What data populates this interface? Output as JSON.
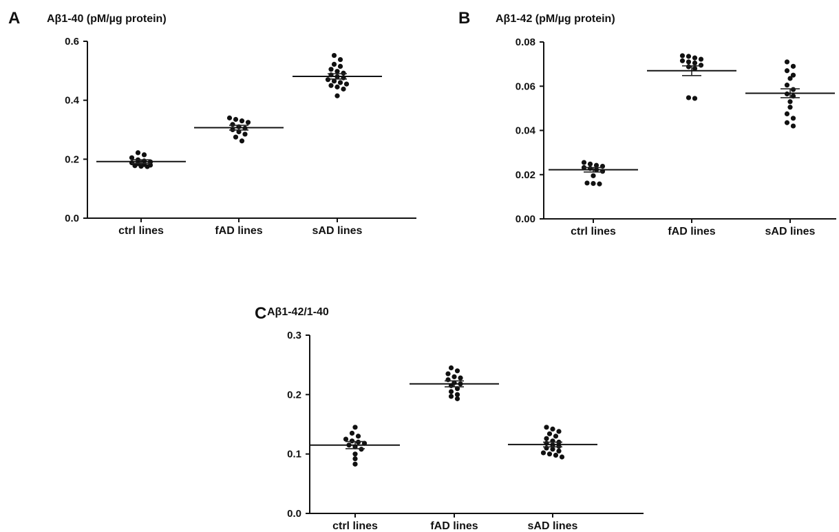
{
  "chart_data": [
    {
      "type": "scatter",
      "panel_letter": "A",
      "title": "Aβ1-40 (pM/µg protein)",
      "categories": [
        "ctrl lines",
        "fAD lines",
        "sAD lines"
      ],
      "ylim": [
        0,
        0.6
      ],
      "yticks": [
        0.0,
        0.2,
        0.4,
        0.6
      ],
      "ytick_labels": [
        "0.0",
        "0.2",
        "0.4",
        "0.6"
      ],
      "series": [
        {
          "values": [
            0.222,
            0.215,
            0.205,
            0.198,
            0.194,
            0.191,
            0.188,
            0.185,
            0.182,
            0.18,
            0.178,
            0.176,
            0.175
          ],
          "mean": 0.192,
          "sem_low": 0.186,
          "sem_high": 0.198
        },
        {
          "values": [
            0.34,
            0.335,
            0.33,
            0.325,
            0.318,
            0.31,
            0.305,
            0.3,
            0.293,
            0.285,
            0.275,
            0.262
          ],
          "mean": 0.307,
          "sem_low": 0.299,
          "sem_high": 0.315
        },
        {
          "values": [
            0.552,
            0.538,
            0.522,
            0.515,
            0.505,
            0.498,
            0.492,
            0.486,
            0.48,
            0.476,
            0.47,
            0.465,
            0.46,
            0.455,
            0.45,
            0.445,
            0.438,
            0.415
          ],
          "mean": 0.481,
          "sem_low": 0.472,
          "sem_high": 0.49
        }
      ]
    },
    {
      "type": "scatter",
      "panel_letter": "B",
      "title": "Aβ1-42 (pM/µg protein)",
      "categories": [
        "ctrl lines",
        "fAD lines",
        "sAD lines"
      ],
      "ylim": [
        0,
        0.08
      ],
      "yticks": [
        0.0,
        0.02,
        0.04,
        0.06,
        0.08
      ],
      "ytick_labels": [
        "0.00",
        "0.02",
        "0.04",
        "0.06",
        "0.08"
      ],
      "series": [
        {
          "values": [
            0.0255,
            0.0248,
            0.0242,
            0.0238,
            0.0232,
            0.0228,
            0.0222,
            0.0215,
            0.0195,
            0.0162,
            0.016,
            0.0158
          ],
          "mean": 0.0222,
          "sem_low": 0.0212,
          "sem_high": 0.0232
        },
        {
          "values": [
            0.0738,
            0.0735,
            0.0728,
            0.0722,
            0.0715,
            0.071,
            0.0705,
            0.0695,
            0.0688,
            0.068,
            0.0548,
            0.0545
          ],
          "mean": 0.067,
          "sem_low": 0.0648,
          "sem_high": 0.0692
        },
        {
          "values": [
            0.071,
            0.069,
            0.067,
            0.065,
            0.0635,
            0.0605,
            0.0585,
            0.0565,
            0.0555,
            0.053,
            0.0505,
            0.0475,
            0.0455,
            0.0435,
            0.042
          ],
          "mean": 0.0568,
          "sem_low": 0.0548,
          "sem_high": 0.0588
        }
      ]
    },
    {
      "type": "scatter",
      "panel_letter": "C",
      "title": "Aβ1-42/1-40",
      "categories": [
        "ctrl lines",
        "fAD lines",
        "sAD lines"
      ],
      "ylim": [
        0,
        0.3
      ],
      "yticks": [
        0.0,
        0.1,
        0.2,
        0.3
      ],
      "ytick_labels": [
        "0.0",
        "0.1",
        "0.2",
        "0.3"
      ],
      "series": [
        {
          "values": [
            0.145,
            0.135,
            0.13,
            0.125,
            0.122,
            0.12,
            0.118,
            0.115,
            0.112,
            0.108,
            0.1,
            0.092,
            0.083
          ],
          "mean": 0.115,
          "sem_low": 0.109,
          "sem_high": 0.121
        },
        {
          "values": [
            0.245,
            0.24,
            0.235,
            0.23,
            0.228,
            0.225,
            0.22,
            0.218,
            0.215,
            0.21,
            0.205,
            0.2,
            0.197,
            0.193
          ],
          "mean": 0.218,
          "sem_low": 0.213,
          "sem_high": 0.223
        },
        {
          "values": [
            0.145,
            0.142,
            0.138,
            0.134,
            0.13,
            0.126,
            0.122,
            0.12,
            0.118,
            0.115,
            0.113,
            0.11,
            0.108,
            0.105,
            0.102,
            0.1,
            0.098,
            0.095
          ],
          "mean": 0.116,
          "sem_low": 0.112,
          "sem_high": 0.12
        }
      ]
    }
  ]
}
